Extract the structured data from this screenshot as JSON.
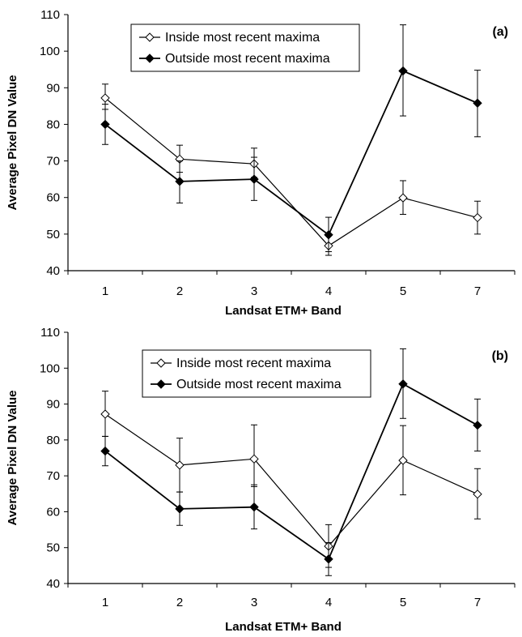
{
  "chart_data": [
    {
      "type": "line",
      "panel_label": "(a)",
      "xlabel": "Landsat ETM+ Band",
      "ylabel": "Average Pixel DN Value",
      "ylim": [
        40,
        110
      ],
      "yticks": [
        40,
        50,
        60,
        70,
        80,
        90,
        100,
        110
      ],
      "categories": [
        "1",
        "2",
        "3",
        "4",
        "5",
        "7"
      ],
      "legend_position": "top-center",
      "grid": false,
      "series": [
        {
          "name": "Inside most recent maxima",
          "marker": "open-diamond",
          "values": [
            87.2,
            70.5,
            69.2,
            46.8,
            59.9,
            54.5
          ],
          "error_low": [
            84.1,
            66.9,
            65.5,
            44.2,
            55.4,
            50.0
          ],
          "error_high": [
            91.0,
            74.3,
            73.5,
            49.8,
            64.6,
            59.0
          ]
        },
        {
          "name": "Outside most recent maxima",
          "marker": "filled-diamond",
          "values": [
            80.0,
            64.4,
            65.0,
            49.8,
            94.6,
            85.8
          ],
          "error_low": [
            74.5,
            58.5,
            59.2,
            45.2,
            82.3,
            76.6
          ],
          "error_high": [
            85.5,
            70.0,
            71.0,
            54.6,
            107.2,
            94.8
          ]
        }
      ]
    },
    {
      "type": "line",
      "panel_label": "(b)",
      "xlabel": "Landsat ETM+ Band",
      "ylabel": "Average Pixel DN Value",
      "ylim": [
        40,
        110
      ],
      "yticks": [
        40,
        50,
        60,
        70,
        80,
        90,
        100,
        110
      ],
      "categories": [
        "1",
        "2",
        "3",
        "4",
        "5",
        "7"
      ],
      "legend_position": "top-center",
      "grid": false,
      "series": [
        {
          "name": "Inside most recent maxima",
          "marker": "open-diamond",
          "values": [
            87.2,
            73.0,
            74.7,
            50.4,
            74.3,
            64.9
          ],
          "error_low": [
            81.0,
            65.5,
            67.0,
            44.5,
            64.7,
            58.0
          ],
          "error_high": [
            93.6,
            80.5,
            84.2,
            56.4,
            84.0,
            72.0
          ]
        },
        {
          "name": "Outside most recent maxima",
          "marker": "filled-diamond",
          "values": [
            76.9,
            60.8,
            61.3,
            46.8,
            95.6,
            84.1
          ],
          "error_low": [
            72.8,
            56.2,
            55.2,
            42.2,
            86.0,
            76.9
          ],
          "error_high": [
            81.0,
            65.5,
            67.5,
            51.4,
            105.4,
            91.4
          ]
        }
      ]
    }
  ]
}
